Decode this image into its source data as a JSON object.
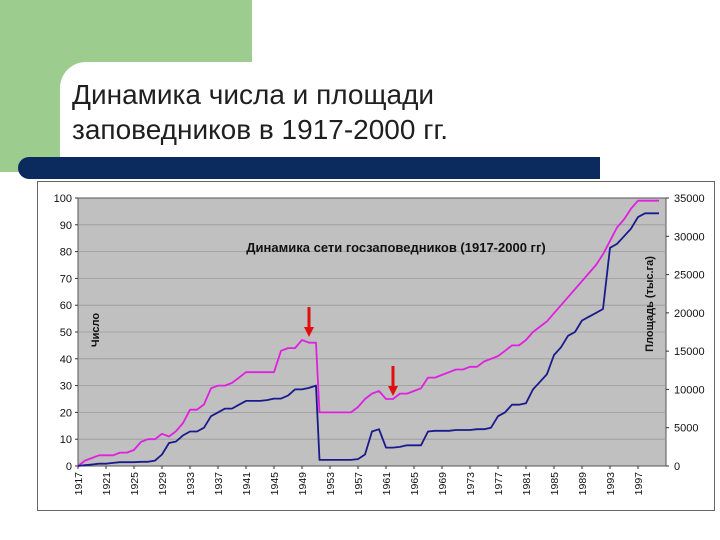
{
  "slide": {
    "title_line1": "Динамика числа и площади",
    "title_line2": "заповедников в 1917-2000 гг."
  },
  "colors": {
    "accent_green": "#9dcc8f",
    "bar_navy": "#0b2a5e",
    "plot_bg": "#c0c0c0",
    "number_series": "#1a1a8c",
    "area_series": "#e020e0",
    "arrow": "#e01010"
  },
  "chart_data": {
    "type": "line",
    "title": "Динамика сети госзаповедников (1917-2000 гг)",
    "ylabel": "Число",
    "y2label": "Площадь (тыс.га)",
    "ylim": [
      0,
      100
    ],
    "y2lim": [
      0,
      35000
    ],
    "xlim": [
      1917,
      2001
    ],
    "grid": true,
    "y_ticks": [
      "0",
      "10",
      "20",
      "30",
      "40",
      "50",
      "60",
      "70",
      "80",
      "90",
      "100"
    ],
    "y2_ticks": [
      "0",
      "5000",
      "10000",
      "15000",
      "20000",
      "25000",
      "30000",
      "35000"
    ],
    "x_ticks": [
      "1917",
      "1921",
      "1925",
      "1929",
      "1933",
      "1937",
      "1941",
      "1945",
      "1949",
      "1953",
      "1957",
      "1961",
      "1965",
      "1969",
      "1973",
      "1977",
      "1981",
      "1985",
      "1989",
      "1993",
      "1997"
    ],
    "series": [
      {
        "color": "#e020e0",
        "axis": "left",
        "points": [
          [
            1917,
            0
          ],
          [
            1918,
            2
          ],
          [
            1919,
            3
          ],
          [
            1920,
            4
          ],
          [
            1921,
            4
          ],
          [
            1922,
            4
          ],
          [
            1923,
            5
          ],
          [
            1924,
            5
          ],
          [
            1925,
            6
          ],
          [
            1926,
            9
          ],
          [
            1927,
            10
          ],
          [
            1928,
            10
          ],
          [
            1929,
            12
          ],
          [
            1930,
            11
          ],
          [
            1931,
            13
          ],
          [
            1932,
            16
          ],
          [
            1933,
            21
          ],
          [
            1934,
            21
          ],
          [
            1935,
            23
          ],
          [
            1936,
            29
          ],
          [
            1937,
            30
          ],
          [
            1938,
            30
          ],
          [
            1939,
            31
          ],
          [
            1940,
            33
          ],
          [
            1941,
            35
          ],
          [
            1942,
            35
          ],
          [
            1943,
            35
          ],
          [
            1944,
            35
          ],
          [
            1945,
            35
          ],
          [
            1946,
            43
          ],
          [
            1947,
            44
          ],
          [
            1948,
            44
          ],
          [
            1949,
            47
          ],
          [
            1950,
            46
          ],
          [
            1951,
            46
          ],
          [
            1951.5,
            20
          ],
          [
            1952,
            20
          ],
          [
            1953,
            20
          ],
          [
            1954,
            20
          ],
          [
            1955,
            20
          ],
          [
            1956,
            20
          ],
          [
            1957,
            22
          ],
          [
            1958,
            25
          ],
          [
            1959,
            27
          ],
          [
            1960,
            28
          ],
          [
            1961,
            25
          ],
          [
            1962,
            25
          ],
          [
            1963,
            27
          ],
          [
            1964,
            27
          ],
          [
            1965,
            28
          ],
          [
            1966,
            29
          ],
          [
            1967,
            33
          ],
          [
            1968,
            33
          ],
          [
            1969,
            34
          ],
          [
            1970,
            35
          ],
          [
            1971,
            36
          ],
          [
            1972,
            36
          ],
          [
            1973,
            37
          ],
          [
            1974,
            37
          ],
          [
            1975,
            39
          ],
          [
            1976,
            40
          ],
          [
            1977,
            41
          ],
          [
            1978,
            43
          ],
          [
            1979,
            45
          ],
          [
            1980,
            45
          ],
          [
            1981,
            47
          ],
          [
            1982,
            50
          ],
          [
            1983,
            52
          ],
          [
            1984,
            54
          ],
          [
            1985,
            57
          ],
          [
            1986,
            60
          ],
          [
            1987,
            63
          ],
          [
            1988,
            66
          ],
          [
            1989,
            69
          ],
          [
            1990,
            72
          ],
          [
            1991,
            75
          ],
          [
            1992,
            79
          ],
          [
            1993,
            84
          ],
          [
            1994,
            89
          ],
          [
            1995,
            92
          ],
          [
            1996,
            96
          ],
          [
            1997,
            99
          ],
          [
            1998,
            99
          ],
          [
            1999,
            99
          ],
          [
            2000,
            99
          ]
        ]
      },
      {
        "color": "#1a1a8c",
        "axis": "right",
        "points": [
          [
            1917,
            0
          ],
          [
            1918,
            100
          ],
          [
            1919,
            200
          ],
          [
            1920,
            300
          ],
          [
            1921,
            300
          ],
          [
            1922,
            400
          ],
          [
            1923,
            500
          ],
          [
            1924,
            500
          ],
          [
            1925,
            500
          ],
          [
            1926,
            550
          ],
          [
            1927,
            550
          ],
          [
            1928,
            700
          ],
          [
            1929,
            1500
          ],
          [
            1930,
            3000
          ],
          [
            1931,
            3200
          ],
          [
            1932,
            4000
          ],
          [
            1933,
            4500
          ],
          [
            1934,
            4500
          ],
          [
            1935,
            5000
          ],
          [
            1936,
            6500
          ],
          [
            1937,
            7000
          ],
          [
            1938,
            7500
          ],
          [
            1939,
            7500
          ],
          [
            1940,
            8000
          ],
          [
            1941,
            8500
          ],
          [
            1942,
            8500
          ],
          [
            1943,
            8500
          ],
          [
            1944,
            8600
          ],
          [
            1945,
            8800
          ],
          [
            1946,
            8800
          ],
          [
            1947,
            9200
          ],
          [
            1948,
            10000
          ],
          [
            1949,
            10000
          ],
          [
            1950,
            10200
          ],
          [
            1951,
            10500
          ],
          [
            1951.5,
            800
          ],
          [
            1952,
            800
          ],
          [
            1953,
            800
          ],
          [
            1954,
            800
          ],
          [
            1955,
            800
          ],
          [
            1956,
            800
          ],
          [
            1957,
            900
          ],
          [
            1958,
            1500
          ],
          [
            1959,
            4500
          ],
          [
            1960,
            4800
          ],
          [
            1961,
            2400
          ],
          [
            1962,
            2400
          ],
          [
            1963,
            2500
          ],
          [
            1964,
            2700
          ],
          [
            1965,
            2700
          ],
          [
            1966,
            2700
          ],
          [
            1967,
            4500
          ],
          [
            1968,
            4600
          ],
          [
            1969,
            4600
          ],
          [
            1970,
            4600
          ],
          [
            1971,
            4700
          ],
          [
            1972,
            4700
          ],
          [
            1973,
            4700
          ],
          [
            1974,
            4800
          ],
          [
            1975,
            4800
          ],
          [
            1976,
            5000
          ],
          [
            1977,
            6500
          ],
          [
            1978,
            7000
          ],
          [
            1979,
            8000
          ],
          [
            1980,
            8000
          ],
          [
            1981,
            8200
          ],
          [
            1982,
            10000
          ],
          [
            1983,
            11000
          ],
          [
            1984,
            12000
          ],
          [
            1985,
            14500
          ],
          [
            1986,
            15500
          ],
          [
            1987,
            17000
          ],
          [
            1988,
            17500
          ],
          [
            1989,
            19000
          ],
          [
            1990,
            19500
          ],
          [
            1991,
            20000
          ],
          [
            1992,
            20500
          ],
          [
            1993,
            28500
          ],
          [
            1994,
            29000
          ],
          [
            1995,
            30000
          ],
          [
            1996,
            31000
          ],
          [
            1997,
            32500
          ],
          [
            1998,
            33000
          ],
          [
            1999,
            33000
          ],
          [
            2000,
            33000
          ]
        ]
      }
    ],
    "arrows": [
      {
        "x": 1950,
        "y": 47
      },
      {
        "x": 1962,
        "y": 25
      }
    ]
  }
}
